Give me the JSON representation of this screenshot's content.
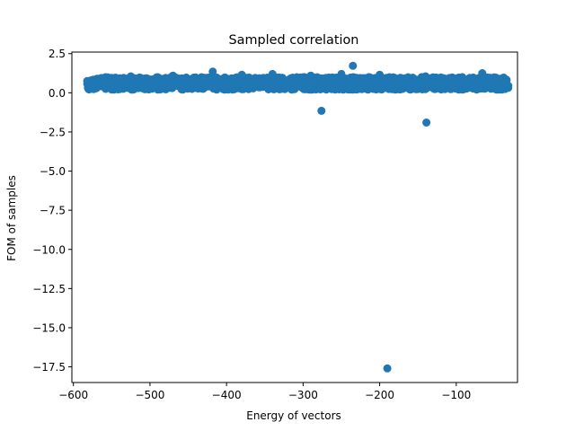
{
  "chart_data": {
    "type": "scatter",
    "title": "Sampled correlation",
    "xlabel": "Energy of vectors",
    "ylabel": "FOM of samples",
    "xlim": [
      -602,
      -20
    ],
    "ylim": [
      -18.5,
      2.6
    ],
    "xticks": [
      -600,
      -500,
      -400,
      -300,
      -200,
      -100
    ],
    "xtick_labels": [
      "−600",
      "−500",
      "−400",
      "−300",
      "−200",
      "−100"
    ],
    "yticks": [
      2.5,
      0.0,
      -2.5,
      -5.0,
      -7.5,
      -10.0,
      -12.5,
      -15.0,
      -17.5
    ],
    "ytick_labels": [
      "2.5",
      "0.0",
      "−2.5",
      "−5.0",
      "−7.5",
      "−10.0",
      "−12.5",
      "−15.0",
      "−17.5"
    ],
    "grid": false,
    "marker_color": "#1f77b4",
    "band": {
      "description": "dense cluster of thousands of points",
      "x_range": [
        -582,
        -32
      ],
      "y_center": 0.6,
      "y_spread": [
        0.2,
        1.0
      ]
    },
    "points": [
      {
        "x": -582,
        "y": 0.75
      },
      {
        "x": -575,
        "y": 0.55
      },
      {
        "x": -560,
        "y": 0.95
      },
      {
        "x": -525,
        "y": 1.05
      },
      {
        "x": -470,
        "y": 1.1
      },
      {
        "x": -418,
        "y": 1.35
      },
      {
        "x": -380,
        "y": 1.15
      },
      {
        "x": -340,
        "y": 1.2
      },
      {
        "x": -290,
        "y": 1.1
      },
      {
        "x": -250,
        "y": 1.2
      },
      {
        "x": -200,
        "y": 1.15
      },
      {
        "x": -140,
        "y": 1.05
      },
      {
        "x": -66,
        "y": 1.25
      },
      {
        "x": -35,
        "y": 0.65
      },
      {
        "x": -32,
        "y": 0.45
      },
      {
        "x": -235,
        "y": 1.72
      },
      {
        "x": -276,
        "y": -1.15
      },
      {
        "x": -139,
        "y": -1.9
      },
      {
        "x": -190,
        "y": -17.6
      }
    ]
  }
}
